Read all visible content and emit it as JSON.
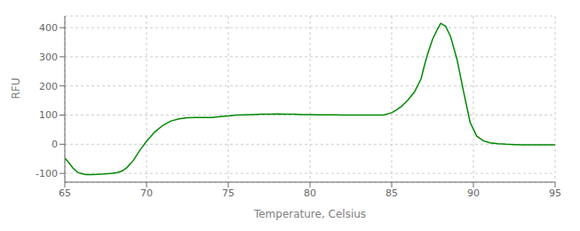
{
  "chart_data": {
    "type": "line",
    "xlabel": "Temperature, Celsius",
    "ylabel": "RFU",
    "color": "#008800",
    "grid": true,
    "xlim": [
      65,
      95
    ],
    "ylim": [
      -130,
      440
    ],
    "xticks": [
      65,
      70,
      75,
      80,
      85,
      90,
      95
    ],
    "yticks": [
      -100,
      0,
      100,
      200,
      300,
      400
    ],
    "x": [
      65.0,
      65.2,
      65.5,
      65.8,
      66.0,
      66.3,
      66.6,
      67.0,
      67.4,
      67.8,
      68.2,
      68.5,
      68.8,
      69.2,
      69.6,
      70.0,
      70.5,
      71.0,
      71.5,
      72.0,
      72.5,
      73.0,
      73.5,
      74.0,
      74.5,
      75.0,
      75.5,
      76.0,
      76.5,
      77.0,
      77.5,
      78.0,
      78.5,
      79.0,
      79.5,
      80.0,
      80.5,
      81.0,
      81.5,
      82.0,
      82.5,
      83.0,
      83.5,
      84.0,
      84.5,
      85.0,
      85.3,
      85.6,
      86.0,
      86.4,
      86.8,
      87.0,
      87.2,
      87.5,
      87.8,
      88.0,
      88.3,
      88.6,
      89.0,
      89.4,
      89.8,
      90.2,
      90.6,
      91.0,
      91.5,
      92.0,
      92.5,
      93.0,
      93.5,
      94.0,
      94.5,
      95.0
    ],
    "values": [
      -48,
      -60,
      -82,
      -97,
      -100,
      -104,
      -104,
      -103,
      -102,
      -100,
      -97,
      -92,
      -80,
      -55,
      -20,
      10,
      42,
      65,
      80,
      87,
      91,
      92,
      92,
      92,
      95,
      97,
      100,
      101,
      102,
      103,
      103,
      104,
      103,
      103,
      102,
      102,
      101,
      101,
      101,
      100,
      100,
      100,
      100,
      100,
      100,
      108,
      118,
      130,
      152,
      180,
      225,
      270,
      310,
      360,
      395,
      415,
      405,
      370,
      290,
      180,
      75,
      28,
      12,
      5,
      2,
      0,
      -1,
      -2,
      -2,
      -2,
      -2,
      -2
    ]
  }
}
